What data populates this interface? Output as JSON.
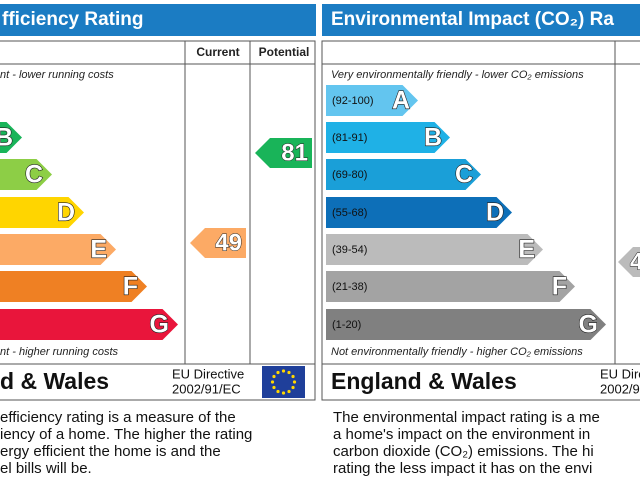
{
  "left": {
    "title": "fficiency Rating",
    "columns": [
      "Current",
      "Potential"
    ],
    "top_note": "nt - lower running costs",
    "bottom_note": "nt - higher running costs",
    "bands": [
      {
        "letter": "B"
      },
      {
        "letter": "C"
      },
      {
        "letter": "D"
      },
      {
        "letter": "E"
      },
      {
        "letter": "F"
      },
      {
        "letter": "G"
      }
    ],
    "current": "49",
    "potential": "81",
    "region": "d & Wales",
    "directive": [
      "EU Directive",
      "2002/91/EC"
    ],
    "description": [
      "efficiency rating is a measure of the",
      "iency of a home. The higher the rating",
      "ergy efficient the home is and the",
      "el bills will be."
    ]
  },
  "right": {
    "title": "Environmental Impact (CO₂) Ra",
    "top_note": "Very environmentally friendly - lower CO₂ emissions",
    "bottom_note": "Not environmentally friendly - higher CO₂ emissions",
    "bands": [
      {
        "range": "(92-100)",
        "letter": "A"
      },
      {
        "range": "(81-91)",
        "letter": "B"
      },
      {
        "range": "(69-80)",
        "letter": "C"
      },
      {
        "range": "(55-68)",
        "letter": "D"
      },
      {
        "range": "(39-54)",
        "letter": "E"
      },
      {
        "range": "(21-38)",
        "letter": "F"
      },
      {
        "range": "(1-20)",
        "letter": "G"
      }
    ],
    "current": "4",
    "region": "England & Wales",
    "directive": [
      "EU Dire",
      "2002/9"
    ],
    "description": [
      "The environmental impact rating is a me",
      "a home's impact on the environment in",
      "carbon dioxide (CO₂) emissions. The hi",
      "rating the less impact it has on the envi"
    ]
  }
}
